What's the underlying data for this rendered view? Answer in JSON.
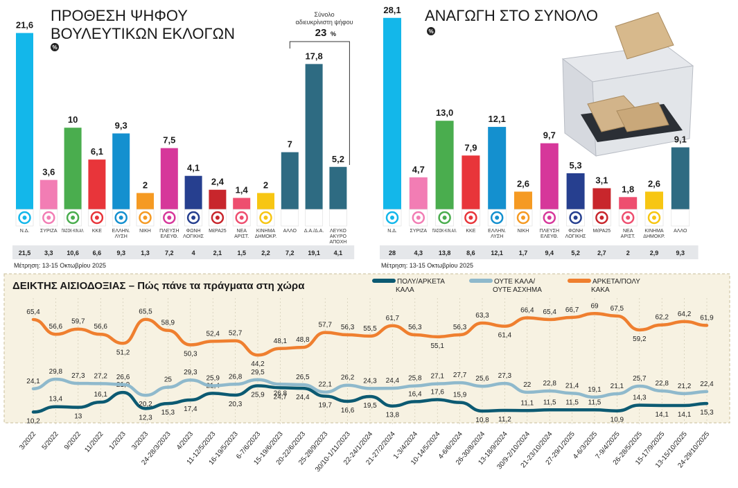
{
  "chart_data": [
    {
      "type": "bar",
      "title": "ΠΡΟΘΕΣΗ ΨΗΦΟΥ ΒΟΥΛΕΥΤΙΚΩΝ ΕΚΛΟΓΩΝ",
      "title_lines": [
        "ΠΡΟΘΕΣΗ ΨΗΦΟΥ",
        "ΒΟΥΛΕΥΤΙΚΩΝ ΕΚΛΟΓΩΝ"
      ],
      "unit_badge": "%",
      "note": "Μέτρηση: 13-15 Οκτωβρίου 2025",
      "annotation": {
        "text_lines": [
          "Σύνολο",
          "αδιευκρίνιστη ψήφου"
        ],
        "value": "23",
        "unit": "%"
      },
      "ylim": [
        0,
        22.5
      ],
      "categories": [
        "Ν.Δ.",
        "ΣΥΡΙΖΑ",
        "ΠΑΣΟΚ-ΚΙΝ.ΑΛ.",
        "ΚΚΕ",
        "ΕΛΛΗΝ. ΛΥΣΗ",
        "ΝΙΚΗ",
        "ΠΛΕΥΣΗ ΕΛΕΥΘ.",
        "ΦΩΝΗ ΛΟΓΙΚΗΣ",
        "ΜέΡΑ25",
        "ΝΕΑ ΑΡΙΣΤ.",
        "ΚΙΝΗΜΑ ΔΗΜΟΚΡ.",
        "ΑΛΛΟ",
        "Δ.Α./Δ.Α.",
        "ΛΕΥΚΟ ΑΚΥΡΟ ΑΠΟΧΗ"
      ],
      "values": [
        21.6,
        3.6,
        10,
        6.1,
        9.3,
        2,
        7.5,
        4.1,
        2.4,
        1.4,
        2,
        7,
        17.8,
        5.2
      ],
      "value_labels": [
        "21,6",
        "3,6",
        "10",
        "6,1",
        "9,3",
        "2",
        "7,5",
        "4,1",
        "2,4",
        "1,4",
        "2",
        "7",
        "17,8",
        "5,2"
      ],
      "previous_labels": [
        "21,5",
        "3,3",
        "10,6",
        "6,6",
        "9,3",
        "1,3",
        "7,2",
        "4",
        "2,1",
        "1,5",
        "2,2",
        "7,2",
        "19,1",
        "4,1"
      ],
      "colors": [
        "#13b7ea",
        "#f27db4",
        "#4aad4e",
        "#e8353a",
        "#1490cf",
        "#f59a23",
        "#d6379a",
        "#263f8f",
        "#c8262c",
        "#ee4e6f",
        "#f7c613",
        "#2e6b82",
        "#2e6b82",
        "#2e6b82"
      ]
    },
    {
      "type": "bar",
      "title": "ΑΝΑΓΩΓΗ ΣΤΟ ΣΥΝΟΛΟ",
      "unit_badge": "%",
      "note": "Μέτρηση: 13-15 Οκτωβρίου 2025",
      "ylim": [
        0,
        29.3
      ],
      "categories": [
        "Ν.Δ.",
        "ΣΥΡΙΖΑ",
        "ΠΑΣΟΚ-ΚΙΝ.ΑΛ.",
        "ΚΚΕ",
        "ΕΛΛΗΝ. ΛΥΣΗ",
        "ΝΙΚΗ",
        "ΠΛΕΥΣΗ ΕΛΕΥΘ.",
        "ΦΩΝΗ ΛΟΓΙΚΗΣ",
        "ΜέΡΑ25",
        "ΝΕΑ ΑΡΙΣΤ.",
        "ΚΙΝΗΜΑ ΔΗΜΟΚΡ.",
        "ΑΛΛΟ"
      ],
      "values": [
        28.1,
        4.7,
        13.0,
        7.9,
        12.1,
        2.6,
        9.7,
        5.3,
        3.1,
        1.8,
        2.6,
        9.1
      ],
      "value_labels": [
        "28,1",
        "4,7",
        "13,0",
        "7,9",
        "12,1",
        "2,6",
        "9,7",
        "5,3",
        "3,1",
        "1,8",
        "2,6",
        "9,1"
      ],
      "previous_labels": [
        "28",
        "4,3",
        "13,8",
        "8,6",
        "12,1",
        "1,7",
        "9,4",
        "5,2",
        "2,7",
        "2",
        "2,9",
        "9,3"
      ],
      "colors": [
        "#13b7ea",
        "#f27db4",
        "#4aad4e",
        "#e8353a",
        "#1490cf",
        "#f59a23",
        "#d6379a",
        "#263f8f",
        "#c8262c",
        "#ee4e6f",
        "#f7c613",
        "#2e6b82"
      ]
    },
    {
      "type": "line",
      "title": "ΔΕΙΚΤΗΣ ΑΙΣΙΟΔΟΞΙΑΣ – Πώς πάνε τα πράγματα στη χώρα",
      "ylim": [
        5,
        72
      ],
      "x": [
        "3/2022",
        "5/2022",
        "9/2022",
        "11/2022",
        "1/2023",
        "3/2023",
        "24-28/3/2023",
        "4/2023",
        "11-12/5/2023",
        "16-19/5/2023",
        "6-7/6/2023",
        "15-19/6/2023",
        "20-22/6/2023",
        "25-28/9/2023",
        "30/10-1/11/2023",
        "22-24/1/2024",
        "21-27/2/2024",
        "1-3/4/2024",
        "10-14/5/2024",
        "4-6/6/2024",
        "26-30/8/2024",
        "13-18/9/2024",
        "30/9-2/10/2024",
        "21-23/10/2024",
        "27-29/1/2025",
        "4-6/3/2025",
        "7-9/4/2025",
        "26-28/5/2025",
        "15-17/9/2025",
        "13-15/10/2025",
        "24-29/10/2025"
      ],
      "series": [
        {
          "name": "ΠΟΛΥ/ΑΡΚΕΤΑ ΚΑΛΑ",
          "color": "#0c5a72",
          "values": [
            10.2,
            13.4,
            13,
            16.1,
            21.9,
            12.3,
            15.3,
            17.4,
            21.4,
            20.3,
            25.9,
            24.7,
            24.4,
            19.7,
            16.6,
            19.5,
            13.8,
            16.4,
            17.6,
            15.9,
            10.8,
            11.2,
            11.1,
            11.5,
            11.5,
            11.5,
            10.9,
            14.3,
            14.1,
            14.1,
            15.3
          ],
          "labels": [
            "10,2",
            "13,4",
            "13",
            "16,1",
            "21,9",
            "12,3",
            "15,3",
            "17,4",
            "21,4",
            "20,3",
            "25,9",
            "24,7",
            "24,4",
            "19,7",
            "16,6",
            "19,5",
            "13,8",
            "16,4",
            "17,6",
            "15,9",
            "10,8",
            "11,2",
            "11,1",
            "11,5",
            "11,5",
            "11,5",
            "10,9",
            "14,3",
            "14,1",
            "14,1",
            "15,3"
          ]
        },
        {
          "name": "ΟΥΤΕ ΚΑΛΑ/ ΟΥΤΕ ΑΣΧΗΜΑ",
          "color": "#8fb9cc",
          "values": [
            24.1,
            29.8,
            27.3,
            27.2,
            26.6,
            20.2,
            25,
            29.3,
            25.9,
            26.8,
            29.5,
            26.8,
            26.5,
            22.1,
            26.2,
            24.3,
            24.4,
            25.8,
            27.1,
            27.7,
            25.6,
            27.3,
            22,
            22.8,
            21.4,
            19.1,
            21.1,
            25.7,
            22.8,
            21.2,
            22.4
          ],
          "labels": [
            "24,1",
            "29,8",
            "27,3",
            "27,2",
            "26,6",
            "20,2",
            "25",
            "29,3",
            "25,9",
            "26,8",
            "29,5",
            "26,8",
            "26,5",
            "22,1",
            "26,2",
            "24,3",
            "24,4",
            "25,8",
            "27,1",
            "27,7",
            "25,6",
            "27,3",
            "22",
            "22,8",
            "21,4",
            "19,1",
            "21,1",
            "25,7",
            "22,8",
            "21,2",
            "22,4"
          ]
        },
        {
          "name": "ΑΡΚΕΤΑ/ΠΟΛΥ ΚΑΚΑ",
          "color": "#ef7f2f",
          "values": [
            65.4,
            56.6,
            59.7,
            56.6,
            51.2,
            65.5,
            58.9,
            50.3,
            52.4,
            52.7,
            44.2,
            48.1,
            48.8,
            57.7,
            56.3,
            55.5,
            61.7,
            56.3,
            55.1,
            56.3,
            63.3,
            61.4,
            66.4,
            65.4,
            66.7,
            69,
            67.5,
            59.2,
            62.2,
            64.2,
            61.9
          ],
          "labels": [
            "65,4",
            "56,6",
            "59,7",
            "56,6",
            "51,2",
            "65,5",
            "58,9",
            "50,3",
            "52,4",
            "52,7",
            "44,2",
            "48,1",
            "48,8",
            "57,7",
            "56,3",
            "55,5",
            "61,7",
            "56,3",
            "55,1",
            "56,3",
            "63,3",
            "61,4",
            "66,4",
            "65,4",
            "66,7",
            "69",
            "67,5",
            "59,2",
            "62,2",
            "64,2",
            "61,9"
          ]
        }
      ],
      "legend_labels": [
        [
          "ΠΟΛΥ/ΑΡΚΕΤΑ",
          "ΚΑΛΑ"
        ],
        [
          "ΟΥΤΕ ΚΑΛΑ/",
          "ΟΥΤΕ ΑΣΧΗΜΑ"
        ],
        [
          "ΑΡΚΕΤΑ/ΠΟΛΥ",
          "ΚΑΚΑ"
        ]
      ],
      "background": "#f7f2e2",
      "grid": true
    }
  ]
}
